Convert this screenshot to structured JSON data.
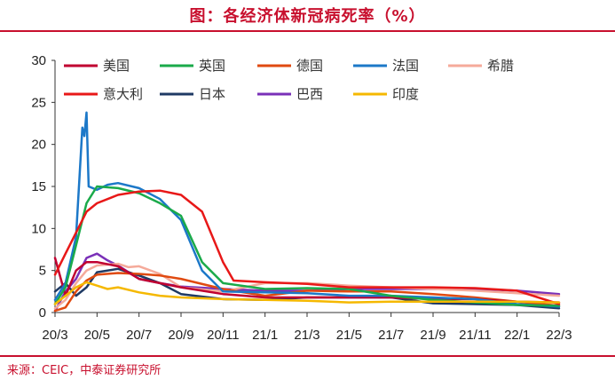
{
  "header": {
    "title": "图：各经济体新冠病死率（%）"
  },
  "footer": {
    "source": "来源：CEIC，中泰证券研究所"
  },
  "colors": {
    "accent": "#c8102e"
  },
  "chart_data": {
    "type": "line",
    "title": "图：各经济体新冠病死率（%）",
    "xlabel": "",
    "ylabel": "",
    "ylim": [
      0,
      30
    ],
    "yticks": [
      0,
      5,
      10,
      15,
      20,
      25,
      30
    ],
    "xlim": [
      "20/3",
      "22/3"
    ],
    "xticks": [
      "20/3",
      "20/5",
      "20/7",
      "20/9",
      "20/11",
      "21/1",
      "21/3",
      "21/5",
      "21/7",
      "21/9",
      "21/11",
      "22/1",
      "22/3"
    ],
    "grid": false,
    "legend_position": "top",
    "series": [
      {
        "name": "美国",
        "color": "#c00030",
        "points": [
          [
            "20/3",
            6.5
          ],
          [
            "20/3.5",
            2.0
          ],
          [
            "20/4",
            5.0
          ],
          [
            "20/4.5",
            6.0
          ],
          [
            "20/5",
            6.0
          ],
          [
            "20/6",
            5.5
          ],
          [
            "20/7",
            4.0
          ],
          [
            "20/9",
            3.0
          ],
          [
            "20/11",
            2.2
          ],
          [
            "21/1",
            1.8
          ],
          [
            "21/3",
            1.8
          ],
          [
            "21/5",
            1.8
          ],
          [
            "21/7",
            1.8
          ],
          [
            "21/9",
            1.6
          ],
          [
            "21/11",
            1.6
          ],
          [
            "22/1",
            1.3
          ],
          [
            "22/3",
            1.2
          ]
        ]
      },
      {
        "name": "英国",
        "color": "#1aaa4a",
        "points": [
          [
            "20/3",
            1.0
          ],
          [
            "20/3.5",
            3.0
          ],
          [
            "20/4",
            8.0
          ],
          [
            "20/4.5",
            13.0
          ],
          [
            "20/5",
            15.0
          ],
          [
            "20/6",
            14.8
          ],
          [
            "20/7",
            14.2
          ],
          [
            "20/8",
            13.0
          ],
          [
            "20/9",
            11.5
          ],
          [
            "20/10",
            6.0
          ],
          [
            "20/11",
            3.5
          ],
          [
            "21/1",
            2.8
          ],
          [
            "21/3",
            2.9
          ],
          [
            "21/5",
            2.8
          ],
          [
            "21/7",
            2.0
          ],
          [
            "21/9",
            1.5
          ],
          [
            "21/11",
            1.2
          ],
          [
            "22/1",
            0.9
          ],
          [
            "22/3",
            0.8
          ]
        ]
      },
      {
        "name": "德国",
        "color": "#e04a10",
        "points": [
          [
            "20/3",
            0.2
          ],
          [
            "20/3.5",
            0.6
          ],
          [
            "20/4",
            2.5
          ],
          [
            "20/4.5",
            3.8
          ],
          [
            "20/5",
            4.5
          ],
          [
            "20/6",
            4.7
          ],
          [
            "20/7",
            4.6
          ],
          [
            "20/8",
            4.4
          ],
          [
            "20/9",
            4.0
          ],
          [
            "20/11",
            2.8
          ],
          [
            "21/1",
            2.0
          ],
          [
            "21/3",
            2.6
          ],
          [
            "21/5",
            2.5
          ],
          [
            "21/7",
            2.5
          ],
          [
            "21/9",
            2.2
          ],
          [
            "21/11",
            1.8
          ],
          [
            "22/1",
            1.3
          ],
          [
            "22/3",
            0.8
          ]
        ]
      },
      {
        "name": "法国",
        "color": "#1c78c8",
        "points": [
          [
            "20/3",
            1.5
          ],
          [
            "20/3.5",
            3.5
          ],
          [
            "20/4",
            9.0
          ],
          [
            "20/4.3",
            22.0
          ],
          [
            "20/4.4",
            21.0
          ],
          [
            "20/4.5",
            23.8
          ],
          [
            "20/4.6",
            15.0
          ],
          [
            "20/5",
            14.6
          ],
          [
            "20/5.5",
            15.2
          ],
          [
            "20/6",
            15.4
          ],
          [
            "20/7",
            14.8
          ],
          [
            "20/8",
            13.5
          ],
          [
            "20/9",
            11.0
          ],
          [
            "20/10",
            5.0
          ],
          [
            "20/11",
            2.5
          ],
          [
            "21/1",
            2.4
          ],
          [
            "21/3",
            2.3
          ],
          [
            "21/5",
            2.0
          ],
          [
            "21/7",
            2.0
          ],
          [
            "21/9",
            1.8
          ],
          [
            "21/11",
            1.6
          ],
          [
            "22/1",
            1.0
          ],
          [
            "22/3",
            0.7
          ]
        ]
      },
      {
        "name": "希腊",
        "color": "#f5aa9a",
        "points": [
          [
            "20/3",
            0.5
          ],
          [
            "20/3.5",
            1.5
          ],
          [
            "20/4",
            3.5
          ],
          [
            "20/4.5",
            5.0
          ],
          [
            "20/5",
            5.6
          ],
          [
            "20/6",
            5.8
          ],
          [
            "20/6.5",
            5.4
          ],
          [
            "20/7",
            5.5
          ],
          [
            "20/8",
            4.6
          ],
          [
            "20/9",
            3.0
          ],
          [
            "20/11",
            2.5
          ],
          [
            "21/1",
            3.5
          ],
          [
            "21/3",
            3.5
          ],
          [
            "21/5",
            3.2
          ],
          [
            "21/7",
            3.0
          ],
          [
            "21/9",
            2.8
          ],
          [
            "21/11",
            2.6
          ],
          [
            "22/1",
            2.3
          ],
          [
            "22/3",
            2.0
          ]
        ]
      },
      {
        "name": "意大利",
        "color": "#e81818",
        "points": [
          [
            "20/3",
            4.5
          ],
          [
            "20/3.5",
            7.0
          ],
          [
            "20/4",
            9.5
          ],
          [
            "20/4.5",
            12.0
          ],
          [
            "20/5",
            13.0
          ],
          [
            "20/6",
            14.0
          ],
          [
            "20/7",
            14.4
          ],
          [
            "20/8",
            14.5
          ],
          [
            "20/9",
            14.0
          ],
          [
            "20/10",
            12.0
          ],
          [
            "20/11",
            6.0
          ],
          [
            "20/11.5",
            3.8
          ],
          [
            "21/1",
            3.6
          ],
          [
            "21/3",
            3.4
          ],
          [
            "21/5",
            3.0
          ],
          [
            "21/7",
            3.0
          ],
          [
            "21/9",
            3.0
          ],
          [
            "21/11",
            2.9
          ],
          [
            "22/1",
            2.6
          ],
          [
            "22/3",
            1.0
          ]
        ]
      },
      {
        "name": "日本",
        "color": "#1f3a64",
        "points": [
          [
            "20/3",
            2.5
          ],
          [
            "20/3.5",
            3.5
          ],
          [
            "20/4",
            2.0
          ],
          [
            "20/4.5",
            3.0
          ],
          [
            "20/5",
            4.8
          ],
          [
            "20/6",
            5.2
          ],
          [
            "20/7",
            4.4
          ],
          [
            "20/8",
            3.5
          ],
          [
            "20/9",
            2.2
          ],
          [
            "20/11",
            1.6
          ],
          [
            "21/1",
            1.5
          ],
          [
            "21/3",
            1.8
          ],
          [
            "21/5",
            1.8
          ],
          [
            "21/7",
            1.8
          ],
          [
            "21/9",
            1.1
          ],
          [
            "21/11",
            1.0
          ],
          [
            "22/1",
            0.9
          ],
          [
            "22/3",
            0.5
          ]
        ]
      },
      {
        "name": "巴西",
        "color": "#7a30b8",
        "points": [
          [
            "20/3",
            0.2
          ],
          [
            "20/3.5",
            2.5
          ],
          [
            "20/4",
            4.0
          ],
          [
            "20/4.5",
            6.5
          ],
          [
            "20/5",
            7.0
          ],
          [
            "20/5.5",
            6.2
          ],
          [
            "20/6",
            5.6
          ],
          [
            "20/7",
            4.0
          ],
          [
            "20/8",
            3.5
          ],
          [
            "20/9",
            3.1
          ],
          [
            "20/11",
            2.8
          ],
          [
            "21/1",
            2.6
          ],
          [
            "21/3",
            2.6
          ],
          [
            "21/5",
            2.8
          ],
          [
            "21/7",
            2.8
          ],
          [
            "21/9",
            2.8
          ],
          [
            "21/11",
            2.8
          ],
          [
            "22/1",
            2.6
          ],
          [
            "22/3",
            2.2
          ]
        ]
      },
      {
        "name": "印度",
        "color": "#f5b800",
        "points": [
          [
            "20/3",
            1.0
          ],
          [
            "20/3.5",
            2.0
          ],
          [
            "20/4",
            3.0
          ],
          [
            "20/4.5",
            3.6
          ],
          [
            "20/5",
            3.2
          ],
          [
            "20/5.5",
            2.8
          ],
          [
            "20/6",
            3.0
          ],
          [
            "20/7",
            2.4
          ],
          [
            "20/8",
            2.0
          ],
          [
            "20/9",
            1.8
          ],
          [
            "20/11",
            1.6
          ],
          [
            "21/1",
            1.5
          ],
          [
            "21/3",
            1.4
          ],
          [
            "21/5",
            1.2
          ],
          [
            "21/7",
            1.3
          ],
          [
            "21/9",
            1.3
          ],
          [
            "21/11",
            1.3
          ],
          [
            "22/1",
            1.3
          ],
          [
            "22/3",
            1.2
          ]
        ]
      }
    ]
  }
}
